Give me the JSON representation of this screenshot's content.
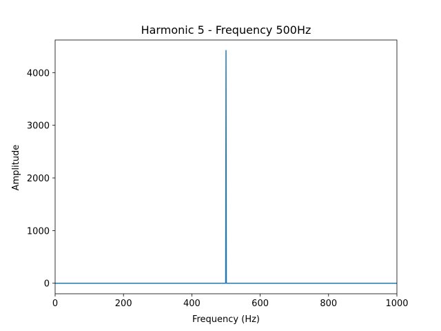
{
  "chart_data": {
    "type": "line",
    "title": "Harmonic 5 - Frequency 500Hz",
    "xlabel": "Frequency (Hz)",
    "ylabel": "Amplitude",
    "xlim": [
      0,
      1000
    ],
    "ylim": [
      -200,
      4620
    ],
    "x_ticks": [
      0,
      200,
      400,
      600,
      800,
      1000
    ],
    "y_ticks": [
      0,
      1000,
      2000,
      3000,
      4000
    ],
    "x_tick_labels": [
      "0",
      "200",
      "400",
      "600",
      "800",
      "1000"
    ],
    "y_tick_labels": [
      "0",
      "1000",
      "2000",
      "3000",
      "4000"
    ],
    "grid": false,
    "series": [
      {
        "color": "#1f77b4",
        "x": [
          0,
          498,
          499,
          500,
          501,
          502,
          1000
        ],
        "y": [
          0,
          0,
          0,
          4420,
          0,
          0,
          0
        ]
      }
    ]
  }
}
